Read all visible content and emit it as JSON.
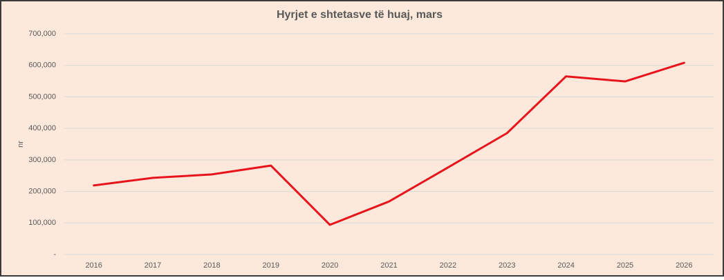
{
  "chart_data": {
    "type": "line",
    "title": "Hyrjet e shtetasve të huaj, mars",
    "y_label": "nr",
    "categories": [
      "2016",
      "2017",
      "2018",
      "2019",
      "2020",
      "2021",
      "2022",
      "2023",
      "2024",
      "2025",
      "2026"
    ],
    "values": [
      219000,
      243000,
      254000,
      282000,
      94000,
      168000,
      276000,
      385000,
      565000,
      549000,
      608000
    ],
    "color": "#e8141b",
    "ylim": [
      0,
      700000
    ],
    "yticks": [
      {
        "value": 0,
        "label": "-"
      },
      {
        "value": 100000,
        "label": "100,000"
      },
      {
        "value": 200000,
        "label": "200,000"
      },
      {
        "value": 300000,
        "label": "300,000"
      },
      {
        "value": 400000,
        "label": "400,000"
      },
      {
        "value": 500000,
        "label": "500,000"
      },
      {
        "value": 600000,
        "label": "600,000"
      },
      {
        "value": 700000,
        "label": "700,000"
      }
    ],
    "grid": true
  }
}
